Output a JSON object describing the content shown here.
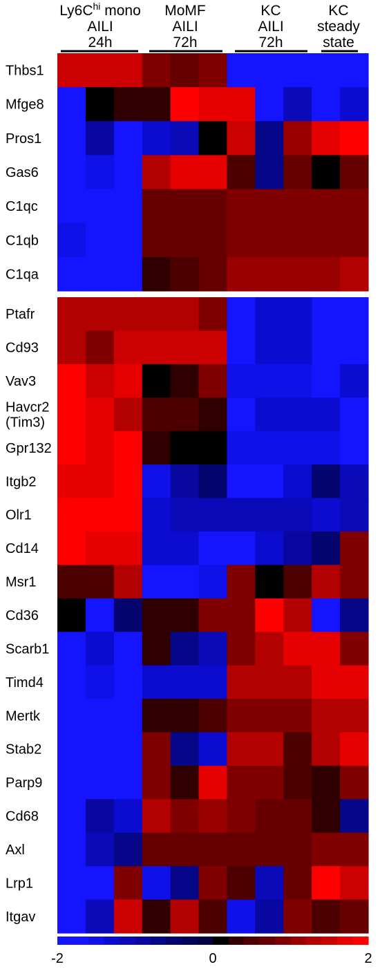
{
  "chart_data": {
    "type": "heatmap",
    "title": "",
    "xlabel": "",
    "ylabel": "",
    "column_groups": [
      {
        "lines": [
          "Ly6C",
          "hi",
          " mono",
          "AILI",
          "24h"
        ],
        "columns": 3
      },
      {
        "lines": [
          "MoMF",
          "AILI",
          "72h"
        ],
        "columns": 3
      },
      {
        "lines": [
          "KC",
          "AILI",
          "72h"
        ],
        "columns": 3
      },
      {
        "lines": [
          "KC",
          "steady",
          "state"
        ],
        "columns": 2
      }
    ],
    "blocks": [
      {
        "rows": [
          "Thbs1",
          "Mfge8",
          "Pros1",
          "Gas6",
          "C1qc",
          "C1qb",
          "C1qa"
        ],
        "values": [
          [
            1.5,
            1.5,
            1.5,
            0.9,
            0.6,
            0.9,
            -1.7,
            -1.7,
            -1.7,
            -1.8,
            -1.6
          ],
          [
            -1.6,
            0.0,
            0.2,
            0.3,
            1.9,
            1.7,
            1.7,
            -1.8,
            -1.1,
            -1.6,
            -1.4
          ],
          [
            -2.0,
            -1.0,
            -1.6,
            -1.4,
            -1.1,
            0.0,
            1.4,
            -0.7,
            1.1,
            1.7,
            2.0
          ],
          [
            -1.7,
            -1.5,
            -2.0,
            1.3,
            1.7,
            1.7,
            0.5,
            -0.8,
            0.6,
            0.0,
            0.6
          ],
          [
            -1.8,
            -1.8,
            -2.0,
            0.7,
            0.7,
            0.7,
            0.9,
            0.9,
            0.9,
            0.9,
            0.9
          ],
          [
            -1.5,
            -1.8,
            -2.0,
            0.7,
            0.7,
            0.7,
            0.9,
            0.9,
            0.9,
            0.9,
            0.9
          ],
          [
            -1.8,
            -1.8,
            -2.0,
            0.3,
            0.5,
            0.6,
            1.0,
            1.0,
            1.0,
            1.1,
            1.3
          ]
        ]
      },
      {
        "rows": [
          "Ptafr",
          "Cd93",
          "Vav3",
          "Havcr2\n(Tim3)",
          "Gpr132",
          "Itgb2",
          "Olr1",
          "Cd14",
          "Msr1",
          "Cd36",
          "Scarb1",
          "Timd4",
          "Mertk",
          "Stab2",
          "Parp9",
          "Cd68",
          "Axl",
          "Lrp1",
          "Itgav"
        ],
        "values": [
          [
            1.3,
            1.3,
            1.3,
            1.3,
            1.3,
            0.9,
            -1.8,
            -1.4,
            -1.4,
            -1.7,
            -1.9
          ],
          [
            1.3,
            0.9,
            1.4,
            1.4,
            1.4,
            1.4,
            -1.7,
            -1.4,
            -1.4,
            -1.9,
            -1.9
          ],
          [
            1.9,
            1.4,
            1.7,
            0.0,
            0.2,
            0.9,
            -1.5,
            -1.5,
            -1.5,
            -1.7,
            -1.4
          ],
          [
            1.9,
            1.6,
            1.3,
            0.5,
            0.5,
            0.2,
            -1.7,
            -1.3,
            -1.3,
            -1.3,
            -1.8
          ],
          [
            1.9,
            1.7,
            1.9,
            0.2,
            0.0,
            0.0,
            -1.5,
            -1.5,
            -1.5,
            -1.5,
            -1.6
          ],
          [
            1.6,
            1.6,
            2.0,
            -1.5,
            -1.0,
            -0.6,
            -1.6,
            -1.6,
            -1.3,
            -0.6,
            -1.2
          ],
          [
            1.8,
            1.8,
            2.0,
            -1.3,
            -1.1,
            -1.1,
            -1.2,
            -1.2,
            -1.2,
            -1.3,
            -1.2
          ],
          [
            2.0,
            1.6,
            1.6,
            -1.4,
            -1.4,
            -1.6,
            -1.8,
            -1.3,
            -0.9,
            -0.6,
            0.9
          ],
          [
            0.4,
            0.5,
            1.2,
            -1.8,
            -2.0,
            -1.5,
            0.9,
            0.1,
            0.5,
            1.2,
            0.9
          ],
          [
            0.1,
            -2.0,
            -0.6,
            0.2,
            0.2,
            0.9,
            0.9,
            1.9,
            1.2,
            -2.0,
            -0.8
          ],
          [
            -2.0,
            -1.4,
            -1.7,
            0.2,
            -0.7,
            -1.2,
            0.9,
            1.2,
            1.6,
            1.6,
            0.8
          ],
          [
            -1.7,
            -1.5,
            -1.7,
            -1.4,
            -1.4,
            -1.4,
            1.2,
            1.2,
            1.2,
            1.6,
            1.6
          ],
          [
            -1.7,
            -2.0,
            -1.8,
            0.2,
            0.2,
            0.5,
            0.9,
            0.9,
            0.9,
            1.2,
            1.2
          ],
          [
            -1.7,
            -1.8,
            -1.8,
            0.8,
            -0.8,
            -1.3,
            1.3,
            1.3,
            0.5,
            1.3,
            1.6
          ],
          [
            -2.0,
            -1.6,
            -1.8,
            0.8,
            0.2,
            1.7,
            0.9,
            0.9,
            0.5,
            0.3,
            0.8
          ],
          [
            -2.0,
            -1.0,
            -1.3,
            1.2,
            0.9,
            1.1,
            0.9,
            0.6,
            0.6,
            0.3,
            -0.8
          ],
          [
            -2.0,
            -1.2,
            -0.8,
            0.6,
            0.6,
            0.6,
            0.6,
            0.6,
            0.6,
            0.8,
            0.8
          ],
          [
            -1.8,
            -1.8,
            0.8,
            -1.5,
            -0.8,
            0.8,
            0.5,
            -1.1,
            0.7,
            1.8,
            1.5
          ],
          [
            -2.0,
            -1.2,
            1.5,
            0.2,
            1.2,
            0.5,
            -1.5,
            -1.0,
            0.8,
            0.5,
            0.7
          ]
        ]
      }
    ],
    "colorbar": {
      "colors": [
        "#1414ff",
        "#1414ff",
        "#1010e8",
        "#0c0cd0",
        "#0a0ab8",
        "#0808a0",
        "#060688",
        "#050570",
        "#040458",
        "#030340",
        "#000000",
        "#300000",
        "#4c0000",
        "#660000",
        "#800000",
        "#990000",
        "#b30000",
        "#cc0000",
        "#e60000",
        "#ff0000"
      ],
      "ticks": [
        "-2",
        "0",
        "2"
      ],
      "range": [
        -2,
        2
      ]
    }
  }
}
